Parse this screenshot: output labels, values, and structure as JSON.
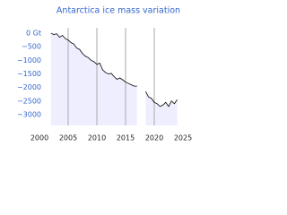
{
  "chart_data": {
    "type": "line",
    "title": "Antarctica ice mass variation",
    "x": [
      2002,
      2002.5,
      2003,
      2003.5,
      2004,
      2004.5,
      2005,
      2005.5,
      2006,
      2006.5,
      2007,
      2007.5,
      2008,
      2008.5,
      2009,
      2009.5,
      2010,
      2010.5,
      2011,
      2011.5,
      2012,
      2012.5,
      2013,
      2013.5,
      2014,
      2014.5,
      2015,
      2015.5,
      2016,
      2016.5,
      2017,
      2017.5,
      2018,
      2018.5,
      2019,
      2019.5,
      2020,
      2020.5,
      2021,
      2021.5,
      2022,
      2022.5,
      2023,
      2023.5,
      2024
    ],
    "series": [
      {
        "color": "#000000",
        "values": [
          0,
          -50,
          -20,
          -150,
          -80,
          -200,
          -250,
          -350,
          -400,
          -550,
          -600,
          -750,
          -850,
          -900,
          -1000,
          -1050,
          -1150,
          -1100,
          -1350,
          -1450,
          -1500,
          -1480,
          -1600,
          -1700,
          -1650,
          -1720,
          -1800,
          -1850,
          -1900,
          -1950,
          -1950,
          null,
          null,
          -2150,
          -2350,
          -2400,
          -2550,
          -2600,
          -2700,
          -2650,
          -2550,
          -2700,
          -2500,
          -2600,
          -2450
        ]
      }
    ],
    "area_color": "#eeeeff",
    "xlim": [
      2000,
      2025
    ],
    "xticks": [
      2000,
      2005,
      2010,
      2015,
      2020,
      2025
    ],
    "ylim": [
      -3400,
      200
    ],
    "yticks": [
      {
        "value": 0,
        "label": "0 Gt"
      },
      {
        "value": -500,
        "label": "−500"
      },
      {
        "value": -1000,
        "label": "−1000"
      },
      {
        "value": -1500,
        "label": "−1500"
      },
      {
        "value": -2000,
        "label": "−2000"
      },
      {
        "value": -2500,
        "label": "−2500"
      },
      {
        "value": -3000,
        "label": "−3000"
      }
    ],
    "grid": true
  }
}
